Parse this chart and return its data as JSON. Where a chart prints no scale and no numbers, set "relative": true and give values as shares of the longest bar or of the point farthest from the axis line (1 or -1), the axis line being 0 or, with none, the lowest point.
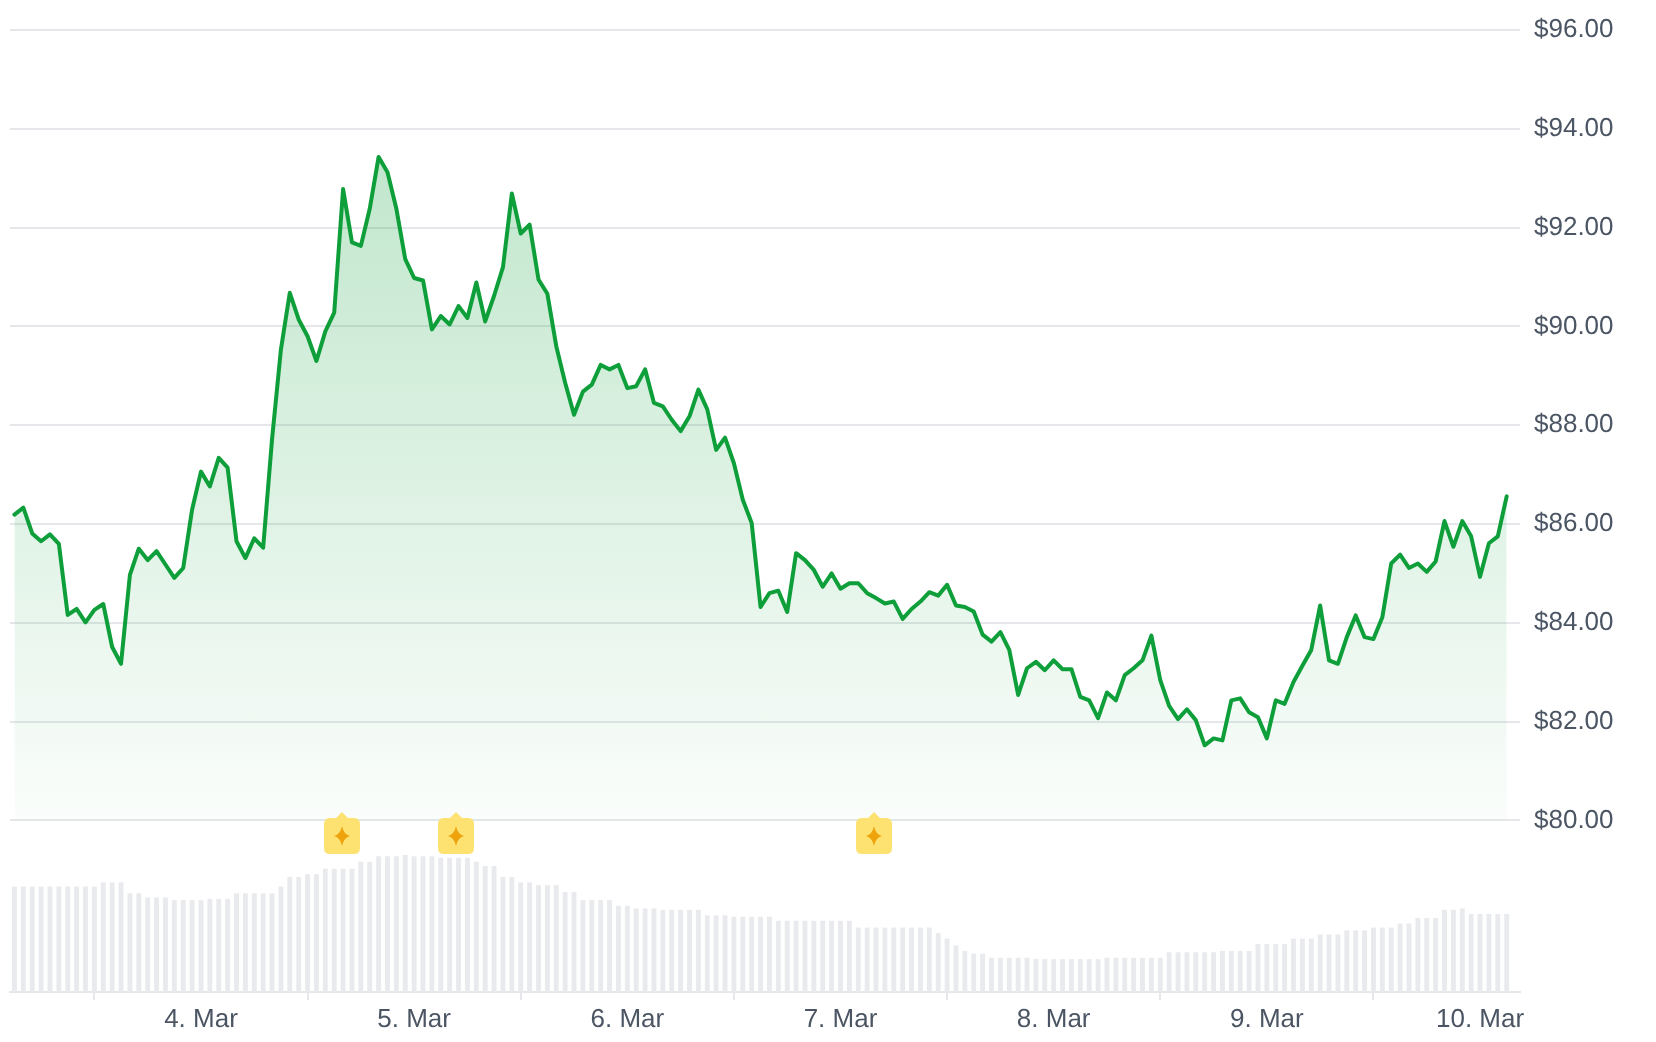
{
  "chart_data": [
    {
      "type": "area",
      "x": [
        "--03-03T03:00",
        "--03-03T04:00",
        "--03-03T05:00",
        "--03-03T06:00",
        "--03-03T07:00",
        "--03-03T08:00",
        "--03-03T09:00",
        "--03-03T10:00",
        "--03-03T11:00",
        "--03-03T12:00",
        "--03-03T13:00",
        "--03-03T14:00",
        "--03-03T15:00",
        "--03-03T16:00",
        "--03-03T17:00",
        "--03-03T18:00",
        "--03-03T19:00",
        "--03-03T20:00",
        "--03-03T21:00",
        "--03-03T22:00",
        "--03-03T23:00",
        "--03-04T00:00",
        "--03-04T01:00",
        "--03-04T02:00",
        "--03-04T03:00",
        "--03-04T04:00",
        "--03-04T05:00",
        "--03-04T06:00",
        "--03-04T07:00",
        "--03-04T08:00",
        "--03-04T09:00",
        "--03-04T10:00",
        "--03-04T11:00",
        "--03-04T12:00",
        "--03-04T13:00",
        "--03-04T14:00",
        "--03-04T15:00",
        "--03-04T16:00",
        "--03-04T17:00",
        "--03-04T18:00",
        "--03-04T19:00",
        "--03-04T20:00",
        "--03-04T21:00",
        "--03-04T22:00",
        "--03-04T23:00",
        "--03-05T00:00",
        "--03-05T01:00",
        "--03-05T02:00",
        "--03-05T03:00",
        "--03-05T04:00",
        "--03-05T05:00",
        "--03-05T06:00",
        "--03-05T07:00",
        "--03-05T08:00",
        "--03-05T09:00",
        "--03-05T10:00",
        "--03-05T11:00",
        "--03-05T12:00",
        "--03-05T13:00",
        "--03-05T14:00",
        "--03-05T15:00",
        "--03-05T16:00",
        "--03-05T17:00",
        "--03-05T18:00",
        "--03-05T19:00",
        "--03-05T20:00",
        "--03-05T21:00",
        "--03-05T22:00",
        "--03-05T23:00",
        "--03-06T00:00",
        "--03-06T01:00",
        "--03-06T02:00",
        "--03-06T03:00",
        "--03-06T04:00",
        "--03-06T05:00",
        "--03-06T06:00",
        "--03-06T07:00",
        "--03-06T08:00",
        "--03-06T09:00",
        "--03-06T10:00",
        "--03-06T11:00",
        "--03-06T12:00",
        "--03-06T13:00",
        "--03-06T14:00",
        "--03-06T15:00",
        "--03-06T16:00",
        "--03-06T17:00",
        "--03-06T18:00",
        "--03-06T19:00",
        "--03-06T20:00",
        "--03-06T21:00",
        "--03-06T22:00",
        "--03-06T23:00",
        "--03-07T00:00",
        "--03-07T01:00",
        "--03-07T02:00",
        "--03-07T03:00",
        "--03-07T04:00",
        "--03-07T05:00",
        "--03-07T06:00",
        "--03-07T07:00",
        "--03-07T08:00",
        "--03-07T09:00",
        "--03-07T10:00",
        "--03-07T11:00",
        "--03-07T12:00",
        "--03-07T13:00",
        "--03-07T14:00",
        "--03-07T15:00",
        "--03-07T16:00",
        "--03-07T17:00",
        "--03-07T18:00",
        "--03-07T19:00",
        "--03-07T20:00",
        "--03-07T21:00",
        "--03-07T22:00",
        "--03-07T23:00",
        "--03-08T00:00",
        "--03-08T01:00",
        "--03-08T02:00",
        "--03-08T03:00",
        "--03-08T04:00",
        "--03-08T05:00",
        "--03-08T06:00",
        "--03-08T07:00",
        "--03-08T08:00",
        "--03-08T09:00",
        "--03-08T10:00",
        "--03-08T11:00",
        "--03-08T12:00",
        "--03-08T13:00",
        "--03-08T14:00",
        "--03-08T15:00",
        "--03-08T16:00",
        "--03-08T17:00",
        "--03-08T18:00",
        "--03-08T19:00",
        "--03-08T20:00",
        "--03-08T21:00",
        "--03-08T22:00",
        "--03-08T23:00",
        "--03-09T00:00",
        "--03-09T01:00",
        "--03-09T02:00",
        "--03-09T03:00",
        "--03-09T04:00",
        "--03-09T05:00",
        "--03-09T06:00",
        "--03-09T07:00",
        "--03-09T08:00",
        "--03-09T09:00",
        "--03-09T10:00",
        "--03-09T11:00",
        "--03-09T12:00",
        "--03-09T13:00",
        "--03-09T14:00",
        "--03-09T15:00",
        "--03-09T16:00",
        "--03-09T17:00",
        "--03-09T18:00",
        "--03-09T19:00",
        "--03-09T20:00",
        "--03-09T21:00",
        "--03-09T22:00",
        "--03-09T23:00",
        "--03-10T00:00",
        "--03-10T01:00",
        "--03-10T02:00",
        "--03-10T03:00"
      ],
      "series": [
        {
          "color": "#0e9f3a",
          "values": [
            86.19,
            86.33,
            85.81,
            85.65,
            85.79,
            85.6,
            84.16,
            84.28,
            84.01,
            84.26,
            84.38,
            83.51,
            83.17,
            84.97,
            85.5,
            85.27,
            85.45,
            85.18,
            84.91,
            85.11,
            86.29,
            87.06,
            86.76,
            87.34,
            87.14,
            85.65,
            85.31,
            85.71,
            85.52,
            87.71,
            89.53,
            90.68,
            90.14,
            89.8,
            89.3,
            89.9,
            90.28,
            92.78,
            91.7,
            91.63,
            92.38,
            93.43,
            93.12,
            92.38,
            91.36,
            90.98,
            90.93,
            89.94,
            90.21,
            90.04,
            90.41,
            90.17,
            90.89,
            90.1,
            90.62,
            91.2,
            92.69,
            91.88,
            92.06,
            90.95,
            90.66,
            89.6,
            88.86,
            88.21,
            88.68,
            88.82,
            89.22,
            89.13,
            89.22,
            88.75,
            88.79,
            89.13,
            88.45,
            88.38,
            88.11,
            87.88,
            88.18,
            88.72,
            88.32,
            87.5,
            87.75,
            87.23,
            86.49,
            86.02,
            84.32,
            84.6,
            84.65,
            84.22,
            85.41,
            85.27,
            85.07,
            84.73,
            85.0,
            84.69,
            84.8,
            84.8,
            84.6,
            84.5,
            84.39,
            84.43,
            84.08,
            84.28,
            84.43,
            84.62,
            84.55,
            84.77,
            84.35,
            84.32,
            84.23,
            83.76,
            83.62,
            83.81,
            83.45,
            82.54,
            83.08,
            83.21,
            83.04,
            83.24,
            83.06,
            83.06,
            82.5,
            82.43,
            82.07,
            82.59,
            82.43,
            82.94,
            83.08,
            83.24,
            83.74,
            82.84,
            82.32,
            82.05,
            82.25,
            82.03,
            81.52,
            81.66,
            81.62,
            82.43,
            82.47,
            82.19,
            82.09,
            81.66,
            82.43,
            82.36,
            82.8,
            83.13,
            83.45,
            84.35,
            83.24,
            83.17,
            83.71,
            84.15,
            83.71,
            83.67,
            84.11,
            85.2,
            85.38,
            85.11,
            85.2,
            85.03,
            85.24,
            86.06,
            85.54,
            86.06,
            85.75,
            84.93,
            85.61,
            85.75,
            86.56
          ]
        }
      ],
      "xlim": [
        "--03-03T02:30",
        "--03-10T04:30"
      ],
      "ylim": [
        80,
        96
      ],
      "yticks": [
        {
          "value": 80,
          "label": "$80.00"
        },
        {
          "value": 82,
          "label": "$82.00"
        },
        {
          "value": 84,
          "label": "$84.00"
        },
        {
          "value": 86,
          "label": "$86.00"
        },
        {
          "value": 88,
          "label": "$88.00"
        },
        {
          "value": 90,
          "label": "$90.00"
        },
        {
          "value": 92,
          "label": "$92.00"
        },
        {
          "value": 94,
          "label": "$94.00"
        },
        {
          "value": 96,
          "label": "$96.00"
        }
      ],
      "grid": "y",
      "tick_labels": "y",
      "marker": "none"
    },
    {
      "type": "bar",
      "x": [
        "--03-03T03:00",
        "--03-03T04:00",
        "--03-03T05:00",
        "--03-03T06:00",
        "--03-03T07:00",
        "--03-03T08:00",
        "--03-03T09:00",
        "--03-03T10:00",
        "--03-03T11:00",
        "--03-03T12:00",
        "--03-03T13:00",
        "--03-03T14:00",
        "--03-03T15:00",
        "--03-03T16:00",
        "--03-03T17:00",
        "--03-03T18:00",
        "--03-03T19:00",
        "--03-03T20:00",
        "--03-03T21:00",
        "--03-03T22:00",
        "--03-03T23:00",
        "--03-04T00:00",
        "--03-04T01:00",
        "--03-04T02:00",
        "--03-04T03:00",
        "--03-04T04:00",
        "--03-04T05:00",
        "--03-04T06:00",
        "--03-04T07:00",
        "--03-04T08:00",
        "--03-04T09:00",
        "--03-04T10:00",
        "--03-04T11:00",
        "--03-04T12:00",
        "--03-04T13:00",
        "--03-04T14:00",
        "--03-04T15:00",
        "--03-04T16:00",
        "--03-04T17:00",
        "--03-04T18:00",
        "--03-04T19:00",
        "--03-04T20:00",
        "--03-04T21:00",
        "--03-04T22:00",
        "--03-04T23:00",
        "--03-05T00:00",
        "--03-05T01:00",
        "--03-05T02:00",
        "--03-05T03:00",
        "--03-05T04:00",
        "--03-05T05:00",
        "--03-05T06:00",
        "--03-05T07:00",
        "--03-05T08:00",
        "--03-05T09:00",
        "--03-05T10:00",
        "--03-05T11:00",
        "--03-05T12:00",
        "--03-05T13:00",
        "--03-05T14:00",
        "--03-05T15:00",
        "--03-05T16:00",
        "--03-05T17:00",
        "--03-05T18:00",
        "--03-05T19:00",
        "--03-05T20:00",
        "--03-05T21:00",
        "--03-05T22:00",
        "--03-05T23:00",
        "--03-06T00:00",
        "--03-06T01:00",
        "--03-06T02:00",
        "--03-06T03:00",
        "--03-06T04:00",
        "--03-06T05:00",
        "--03-06T06:00",
        "--03-06T07:00",
        "--03-06T08:00",
        "--03-06T09:00",
        "--03-06T10:00",
        "--03-06T11:00",
        "--03-06T12:00",
        "--03-06T13:00",
        "--03-06T14:00",
        "--03-06T15:00",
        "--03-06T16:00",
        "--03-06T17:00",
        "--03-06T18:00",
        "--03-06T19:00",
        "--03-06T20:00",
        "--03-06T21:00",
        "--03-06T22:00",
        "--03-06T23:00",
        "--03-07T00:00",
        "--03-07T01:00",
        "--03-07T02:00",
        "--03-07T03:00",
        "--03-07T04:00",
        "--03-07T05:00",
        "--03-07T06:00",
        "--03-07T07:00",
        "--03-07T08:00",
        "--03-07T09:00",
        "--03-07T10:00",
        "--03-07T11:00",
        "--03-07T12:00",
        "--03-07T13:00",
        "--03-07T14:00",
        "--03-07T15:00",
        "--03-07T16:00",
        "--03-07T17:00",
        "--03-07T18:00",
        "--03-07T19:00",
        "--03-07T20:00",
        "--03-07T21:00",
        "--03-07T22:00",
        "--03-07T23:00",
        "--03-08T00:00",
        "--03-08T01:00",
        "--03-08T02:00",
        "--03-08T03:00",
        "--03-08T04:00",
        "--03-08T05:00",
        "--03-08T06:00",
        "--03-08T07:00",
        "--03-08T08:00",
        "--03-08T09:00",
        "--03-08T10:00",
        "--03-08T11:00",
        "--03-08T12:00",
        "--03-08T13:00",
        "--03-08T14:00",
        "--03-08T15:00",
        "--03-08T16:00",
        "--03-08T17:00",
        "--03-08T18:00",
        "--03-08T19:00",
        "--03-08T20:00",
        "--03-08T21:00",
        "--03-08T22:00",
        "--03-08T23:00",
        "--03-09T00:00",
        "--03-09T01:00",
        "--03-09T02:00",
        "--03-09T03:00",
        "--03-09T04:00",
        "--03-09T05:00",
        "--03-09T06:00",
        "--03-09T07:00",
        "--03-09T08:00",
        "--03-09T09:00",
        "--03-09T10:00",
        "--03-09T11:00",
        "--03-09T12:00",
        "--03-09T13:00",
        "--03-09T14:00",
        "--03-09T15:00",
        "--03-09T16:00",
        "--03-09T17:00",
        "--03-09T18:00",
        "--03-09T19:00",
        "--03-09T20:00",
        "--03-09T21:00",
        "--03-09T22:00",
        "--03-09T23:00",
        "--03-10T00:00",
        "--03-10T01:00",
        "--03-10T02:00",
        "--03-10T03:00"
      ],
      "values": [
        0.77,
        0.77,
        0.77,
        0.77,
        0.77,
        0.77,
        0.77,
        0.77,
        0.77,
        0.77,
        0.8,
        0.8,
        0.8,
        0.72,
        0.72,
        0.69,
        0.69,
        0.69,
        0.67,
        0.67,
        0.67,
        0.67,
        0.68,
        0.68,
        0.68,
        0.72,
        0.72,
        0.72,
        0.72,
        0.72,
        0.77,
        0.84,
        0.84,
        0.86,
        0.86,
        0.9,
        0.9,
        0.9,
        0.9,
        0.95,
        0.95,
        0.99,
        0.99,
        0.99,
        1,
        0.99,
        0.99,
        0.99,
        0.98,
        0.98,
        0.98,
        0.98,
        0.95,
        0.92,
        0.92,
        0.84,
        0.84,
        0.8,
        0.8,
        0.78,
        0.78,
        0.78,
        0.73,
        0.73,
        0.67,
        0.67,
        0.67,
        0.67,
        0.63,
        0.63,
        0.61,
        0.61,
        0.61,
        0.6,
        0.6,
        0.6,
        0.6,
        0.6,
        0.56,
        0.56,
        0.56,
        0.55,
        0.55,
        0.55,
        0.55,
        0.55,
        0.52,
        0.52,
        0.52,
        0.52,
        0.52,
        0.52,
        0.52,
        0.52,
        0.52,
        0.47,
        0.47,
        0.47,
        0.47,
        0.47,
        0.47,
        0.47,
        0.47,
        0.47,
        0.43,
        0.39,
        0.34,
        0.3,
        0.28,
        0.28,
        0.25,
        0.25,
        0.25,
        0.25,
        0.25,
        0.24,
        0.24,
        0.24,
        0.24,
        0.24,
        0.24,
        0.24,
        0.24,
        0.25,
        0.25,
        0.25,
        0.25,
        0.25,
        0.25,
        0.25,
        0.29,
        0.29,
        0.29,
        0.29,
        0.29,
        0.29,
        0.3,
        0.3,
        0.3,
        0.3,
        0.35,
        0.35,
        0.35,
        0.35,
        0.39,
        0.39,
        0.39,
        0.42,
        0.42,
        0.42,
        0.45,
        0.45,
        0.45,
        0.47,
        0.47,
        0.47,
        0.5,
        0.5,
        0.54,
        0.54,
        0.54,
        0.6,
        0.6,
        0.61,
        0.57,
        0.57,
        0.57,
        0.57,
        0.57
      ],
      "color": "#e8eaed",
      "relative": true,
      "xlim": [
        "--03-03T02:30",
        "--03-10T04:30"
      ],
      "xticks": [
        {
          "value": "--03-04",
          "label": "4. Mar"
        },
        {
          "value": "--03-05",
          "label": "5. Mar"
        },
        {
          "value": "--03-06",
          "label": "6. Mar"
        },
        {
          "value": "--03-07",
          "label": "7. Mar"
        },
        {
          "value": "--03-08",
          "label": "8. Mar"
        },
        {
          "value": "--03-09",
          "label": "9. Mar"
        },
        {
          "value": "--03-10",
          "label": "10. Mar"
        }
      ],
      "tick_labels": "x"
    }
  ]
}
